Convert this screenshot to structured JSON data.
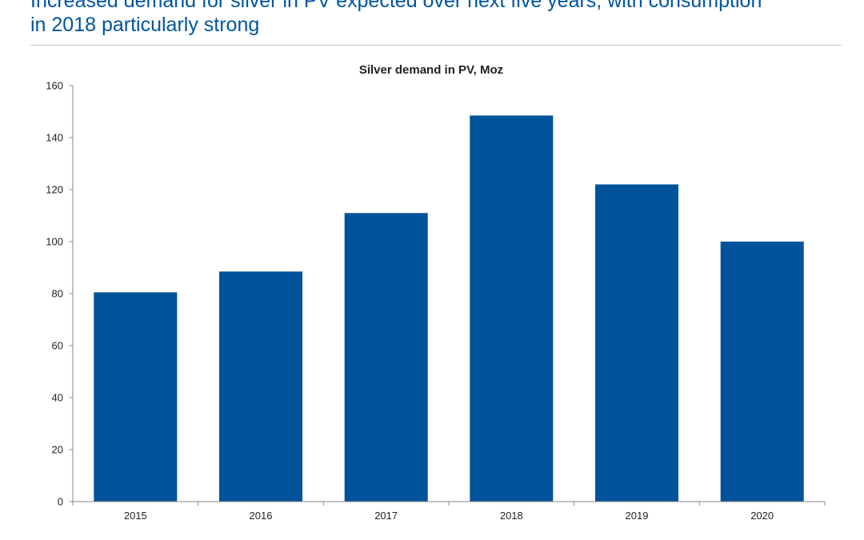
{
  "page": {
    "headline": "Increased demand for silver in PV expected over next five years, with consumption in 2018 particularly strong",
    "headline_lines": [
      "Increased demand for silver in PV expected over next five years, with consumption",
      "in 2018 particularly strong"
    ]
  },
  "colors": {
    "headline": "#0055a0",
    "bar": "#00529b",
    "axis": "#888888",
    "rule": "#c8c8c8"
  },
  "chart_data": {
    "type": "bar",
    "title": "Silver demand in PV, Moz",
    "xlabel": "",
    "ylabel": "",
    "categories": [
      "2015",
      "2016",
      "2017",
      "2018",
      "2019",
      "2020"
    ],
    "values": [
      80.5,
      88.5,
      111,
      148.5,
      122,
      100
    ],
    "ylim": [
      0,
      160
    ],
    "yticks": [
      0,
      20,
      40,
      60,
      80,
      100,
      120,
      140,
      160
    ],
    "grid": false,
    "legend": "none"
  }
}
